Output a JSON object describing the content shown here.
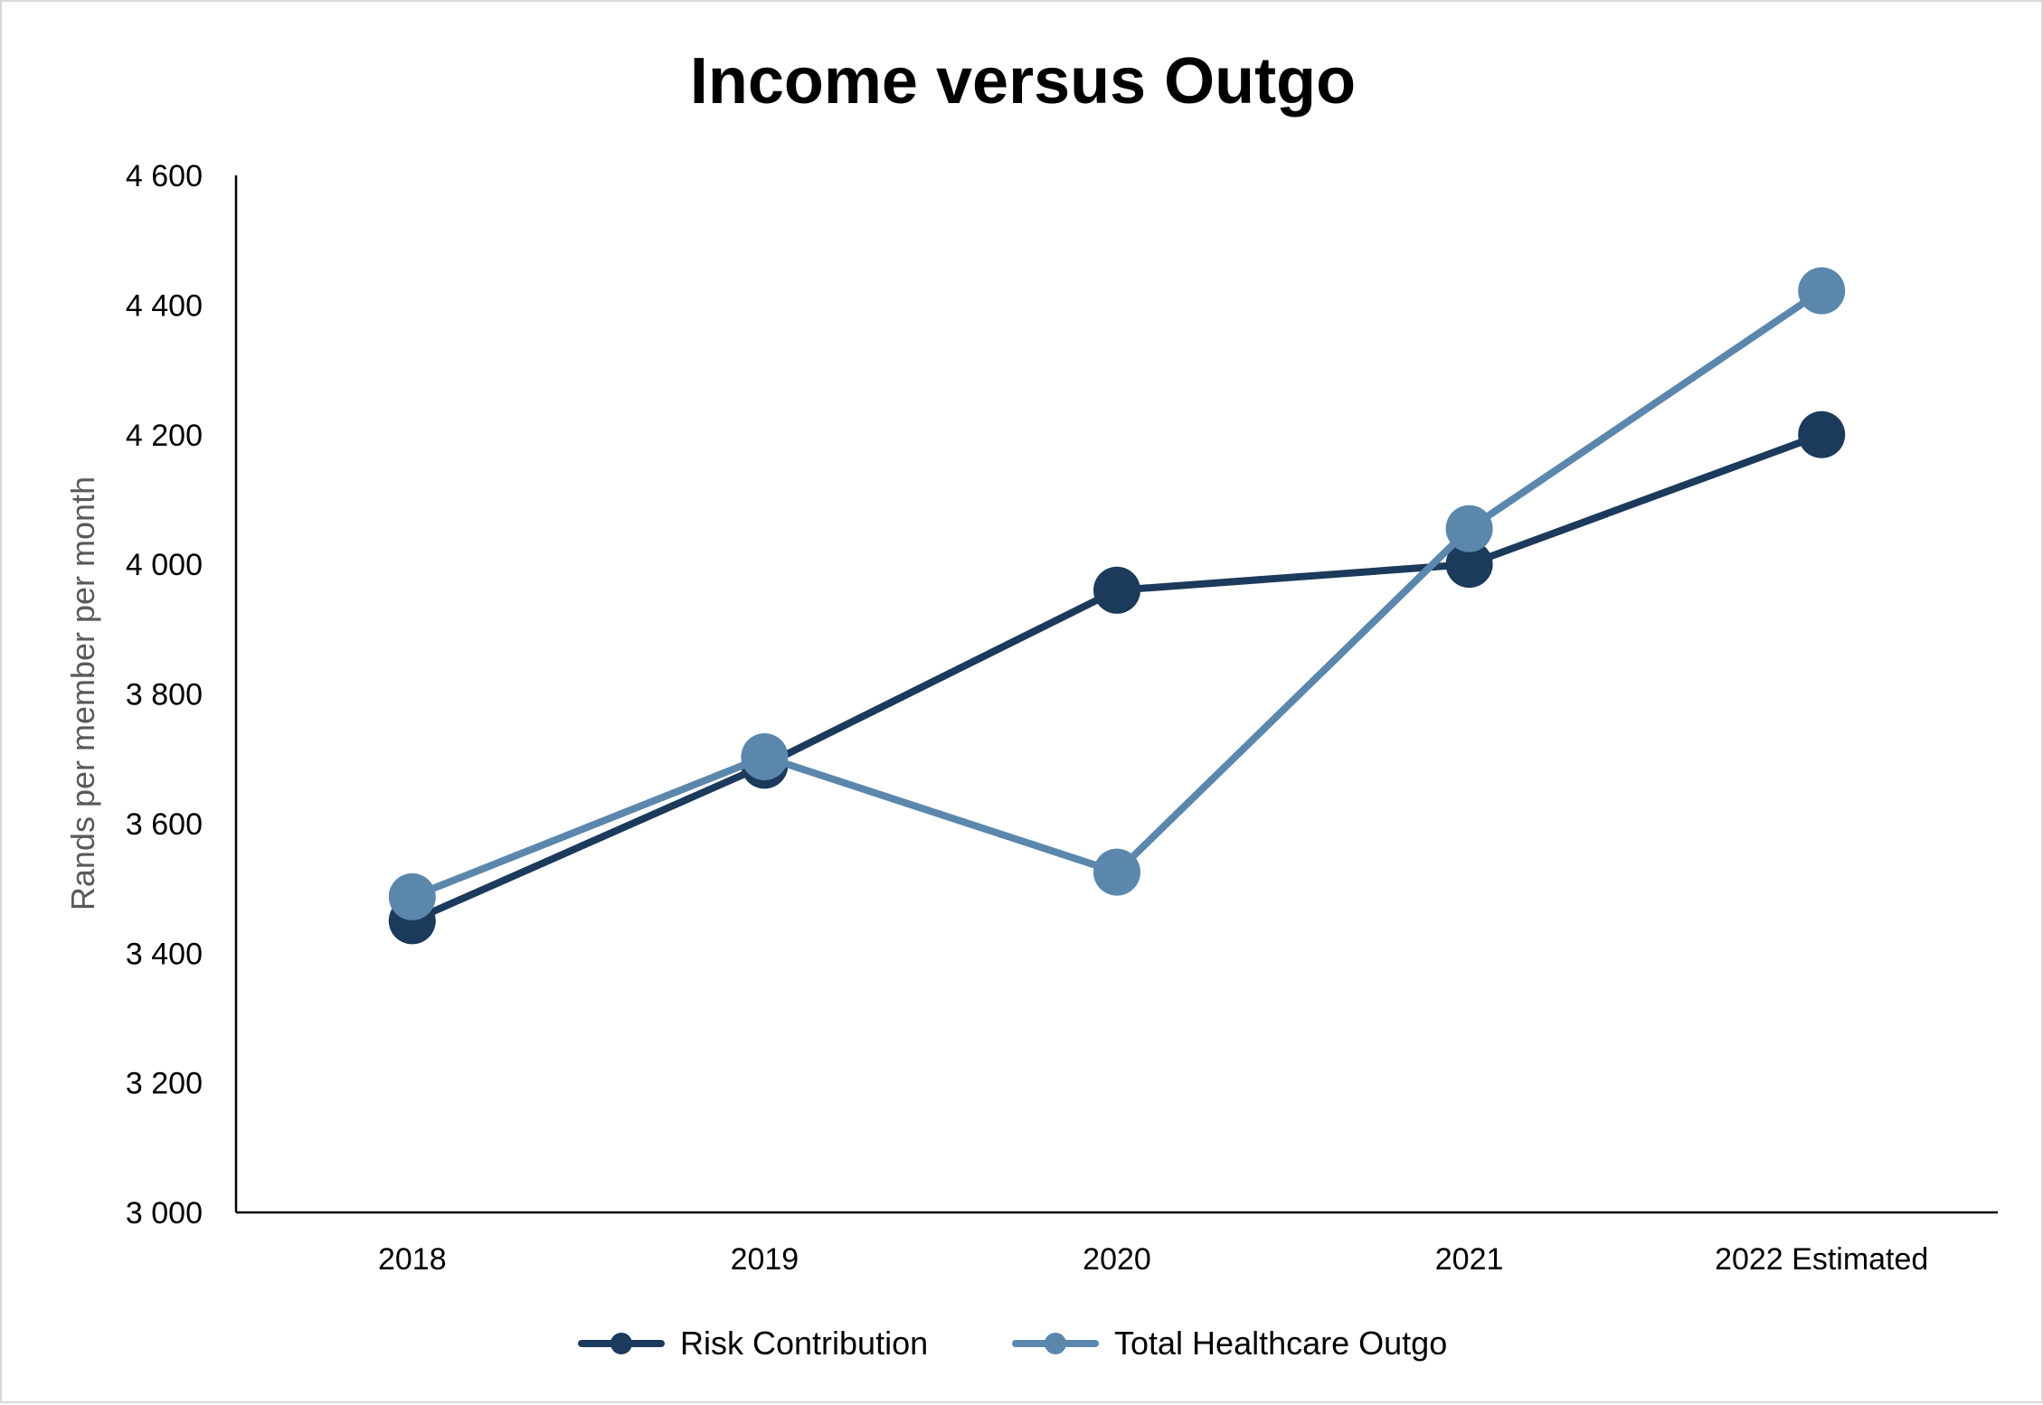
{
  "chart_data": {
    "type": "line",
    "title": "Income versus Outgo",
    "xlabel": "",
    "ylabel": "Rands per member per month",
    "categories": [
      "2018",
      "2019",
      "2020",
      "2021",
      "2022 Estimated"
    ],
    "ylim": [
      3000,
      4600
    ],
    "yticks": [
      3000,
      3200,
      3400,
      3600,
      3800,
      4000,
      4200,
      4400,
      4600
    ],
    "ytick_labels": [
      "3 000",
      "3 200",
      "3 400",
      "3 600",
      "3 800",
      "4 000",
      "4 200",
      "4 400",
      "4 600"
    ],
    "grid": false,
    "legend_position": "bottom",
    "series": [
      {
        "name": "Risk Contribution",
        "color": "#1b3a5c",
        "values": [
          3450,
          3690,
          3960,
          4000,
          4200
        ]
      },
      {
        "name": "Total Healthcare Outgo",
        "color": "#5b87ad",
        "values": [
          3487,
          3703,
          3525,
          4055,
          4422
        ]
      }
    ]
  }
}
